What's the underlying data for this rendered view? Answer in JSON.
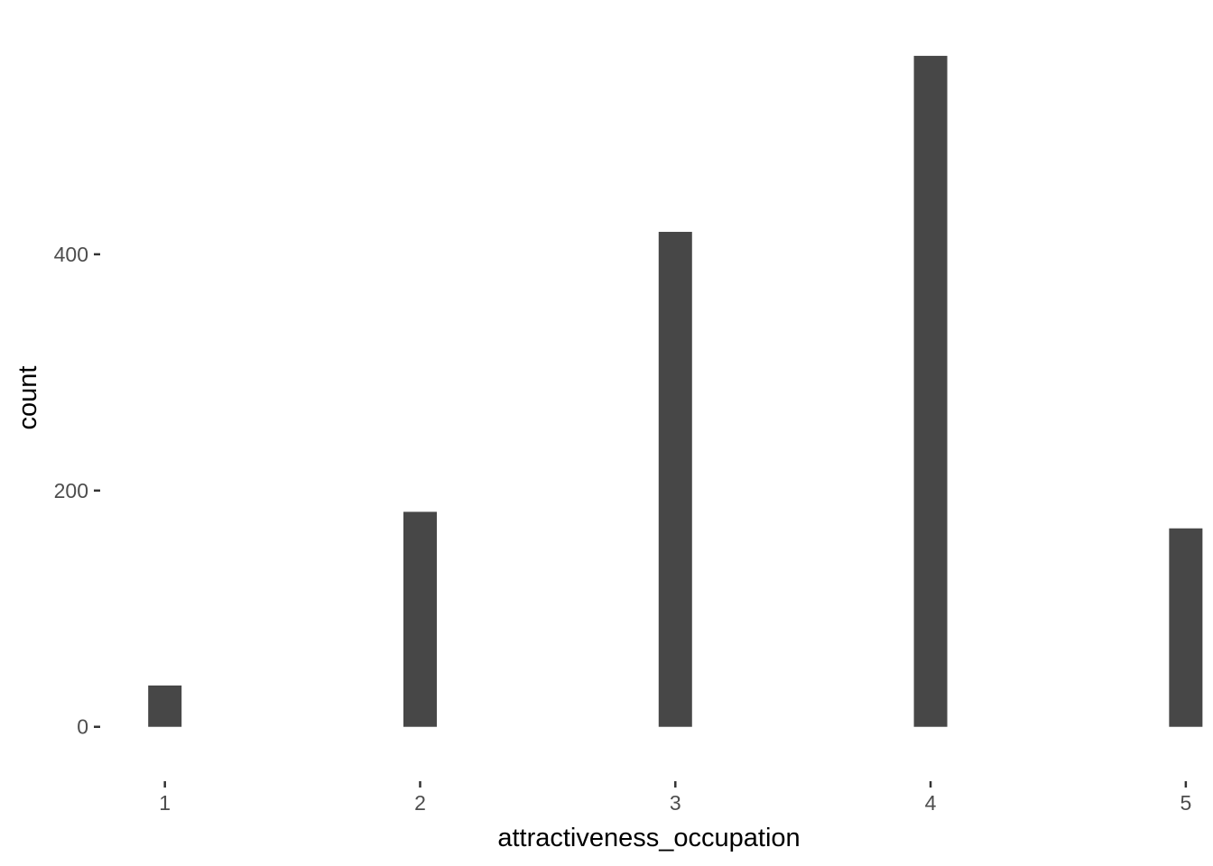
{
  "chart_data": {
    "type": "bar",
    "xlabel": "attractiveness_occupation",
    "ylabel": "count",
    "x": [
      1,
      2,
      3,
      4,
      5
    ],
    "values": [
      35,
      182,
      419,
      568,
      168
    ],
    "x_ticks": [
      1,
      2,
      3,
      4,
      5
    ],
    "y_ticks": [
      0,
      200,
      400
    ],
    "xlim": [
      0.75,
      5.05
    ],
    "ylim": [
      -30,
      600
    ],
    "grid": false,
    "bar_color": "#474747"
  }
}
